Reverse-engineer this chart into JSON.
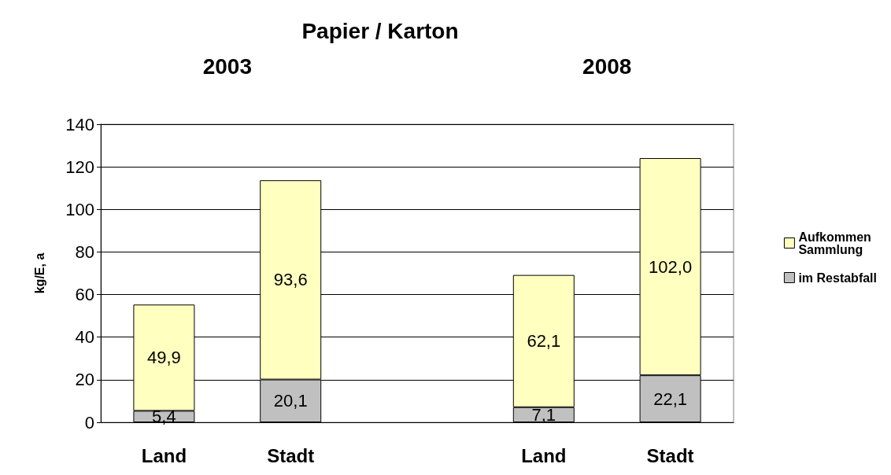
{
  "chart_data": {
    "type": "bar",
    "title": "Papier / Karton",
    "ylabel": "kg/E, a",
    "categories": [
      "Land",
      "Stadt",
      null,
      "Land",
      "Stadt"
    ],
    "stacked": true,
    "series": [
      {
        "name": "im Restabfall",
        "color": "#c0c0c0",
        "values": [
          5.4,
          20.1,
          null,
          7.1,
          22.1
        ],
        "value_labels": [
          "5,4",
          "20,1",
          null,
          "7,1",
          "22,1"
        ]
      },
      {
        "name": "Aufkommen Sammlung",
        "color": "#ffffc0",
        "values": [
          49.9,
          93.6,
          null,
          62.1,
          102.0
        ],
        "value_labels": [
          "49,9",
          "93,6",
          null,
          "62,1",
          "102,0"
        ]
      }
    ],
    "annotations": [
      "2003",
      "2008"
    ],
    "ylim": [
      0,
      140
    ],
    "yticks": [
      0,
      20,
      40,
      60,
      80,
      100,
      120,
      140
    ],
    "grid": "y",
    "legend": "right"
  }
}
